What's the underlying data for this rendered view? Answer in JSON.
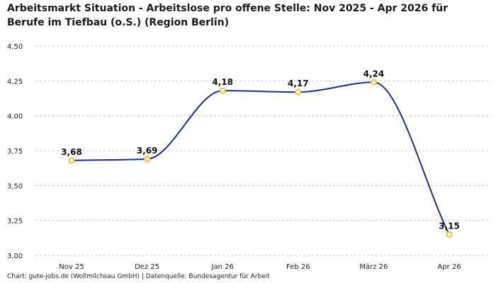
{
  "chart_data": {
    "type": "line",
    "title_lines": [
      "Arbeitsmarkt Situation - Arbeitslose pro offene Stelle: Nov 2025 - Apr 2026 für",
      "Berufe im Tiefbau (o.S.) (Region Berlin)"
    ],
    "categories": [
      "Nov 25",
      "Dez 25",
      "Jan 26",
      "Feb 26",
      "März 26",
      "Apr 26"
    ],
    "values": [
      3.68,
      3.69,
      4.18,
      4.17,
      4.24,
      3.15
    ],
    "data_labels": [
      "3,68",
      "3,69",
      "4,18",
      "4,17",
      "4,24",
      "3,15"
    ],
    "ylim": [
      3.0,
      4.5
    ],
    "yticks": [
      3.0,
      3.25,
      3.5,
      3.75,
      4.0,
      4.25,
      4.5
    ],
    "ytick_labels": [
      "3,00",
      "3,25",
      "3,50",
      "3,75",
      "4,00",
      "4,25",
      "4,50"
    ],
    "grid": true,
    "line_color": "#1f2f8a",
    "marker_color": "#f2c230",
    "grid_color": "#c8c8c8"
  },
  "footer": {
    "source": "Chart: gute-jobs.de (Wollmilchsau GmbH) | Datenquelle: Bundesagentur für Arbeit"
  }
}
